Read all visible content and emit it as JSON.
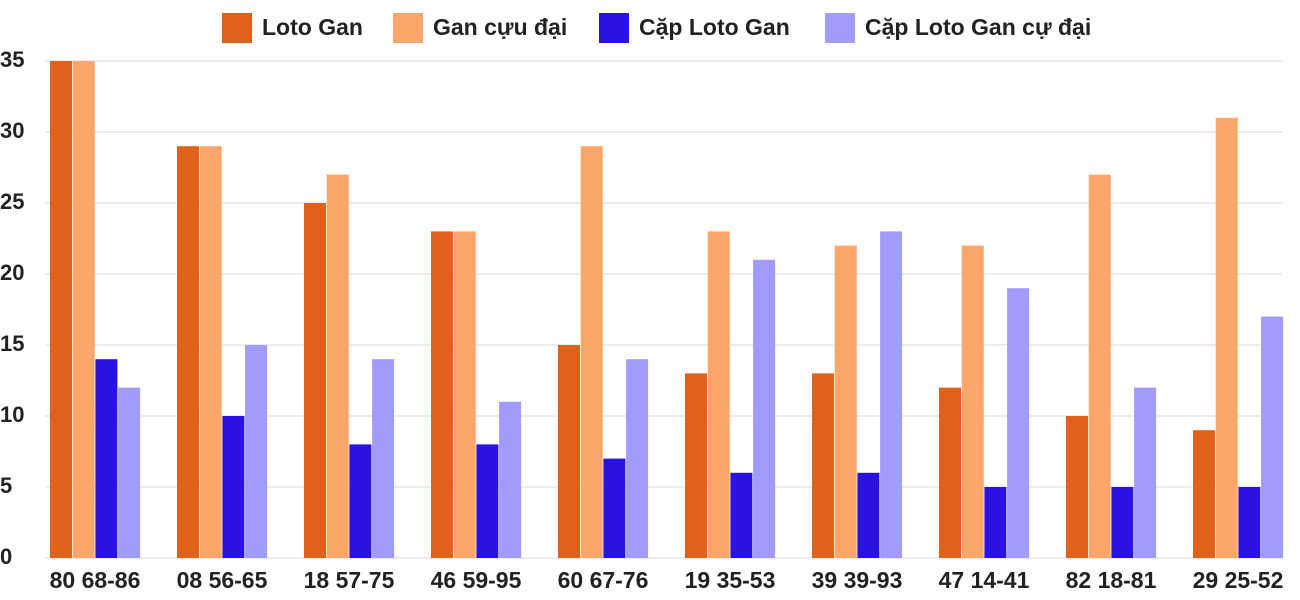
{
  "chart_data": {
    "type": "bar",
    "categories": [
      "80 68-86",
      "08 56-65",
      "18 57-75",
      "46 59-95",
      "60 67-76",
      "19 35-53",
      "39 39-93",
      "47 14-41",
      "82 18-81",
      "29 25-52"
    ],
    "series": [
      {
        "name": "Loto Gan",
        "color": "#e0611a",
        "values": [
          35,
          29,
          25,
          23,
          15,
          13,
          13,
          12,
          10,
          9
        ]
      },
      {
        "name": "Gan cựu đại",
        "color": "#fda66b",
        "values": [
          35,
          29,
          27,
          23,
          29,
          23,
          22,
          22,
          27,
          31
        ]
      },
      {
        "name": "Cặp Loto Gan",
        "color": "#2a13e0",
        "values": [
          14,
          10,
          8,
          8,
          7,
          6,
          6,
          5,
          5,
          5
        ]
      },
      {
        "name": "Cặp Loto Gan cự đại",
        "color": "#a29bfe",
        "values": [
          12,
          15,
          14,
          11,
          14,
          21,
          23,
          19,
          12,
          17
        ]
      }
    ],
    "ylim": [
      0,
      35
    ],
    "yticks": [
      0,
      5,
      10,
      15,
      20,
      25,
      30,
      35
    ],
    "grid": true,
    "legend": "top"
  }
}
